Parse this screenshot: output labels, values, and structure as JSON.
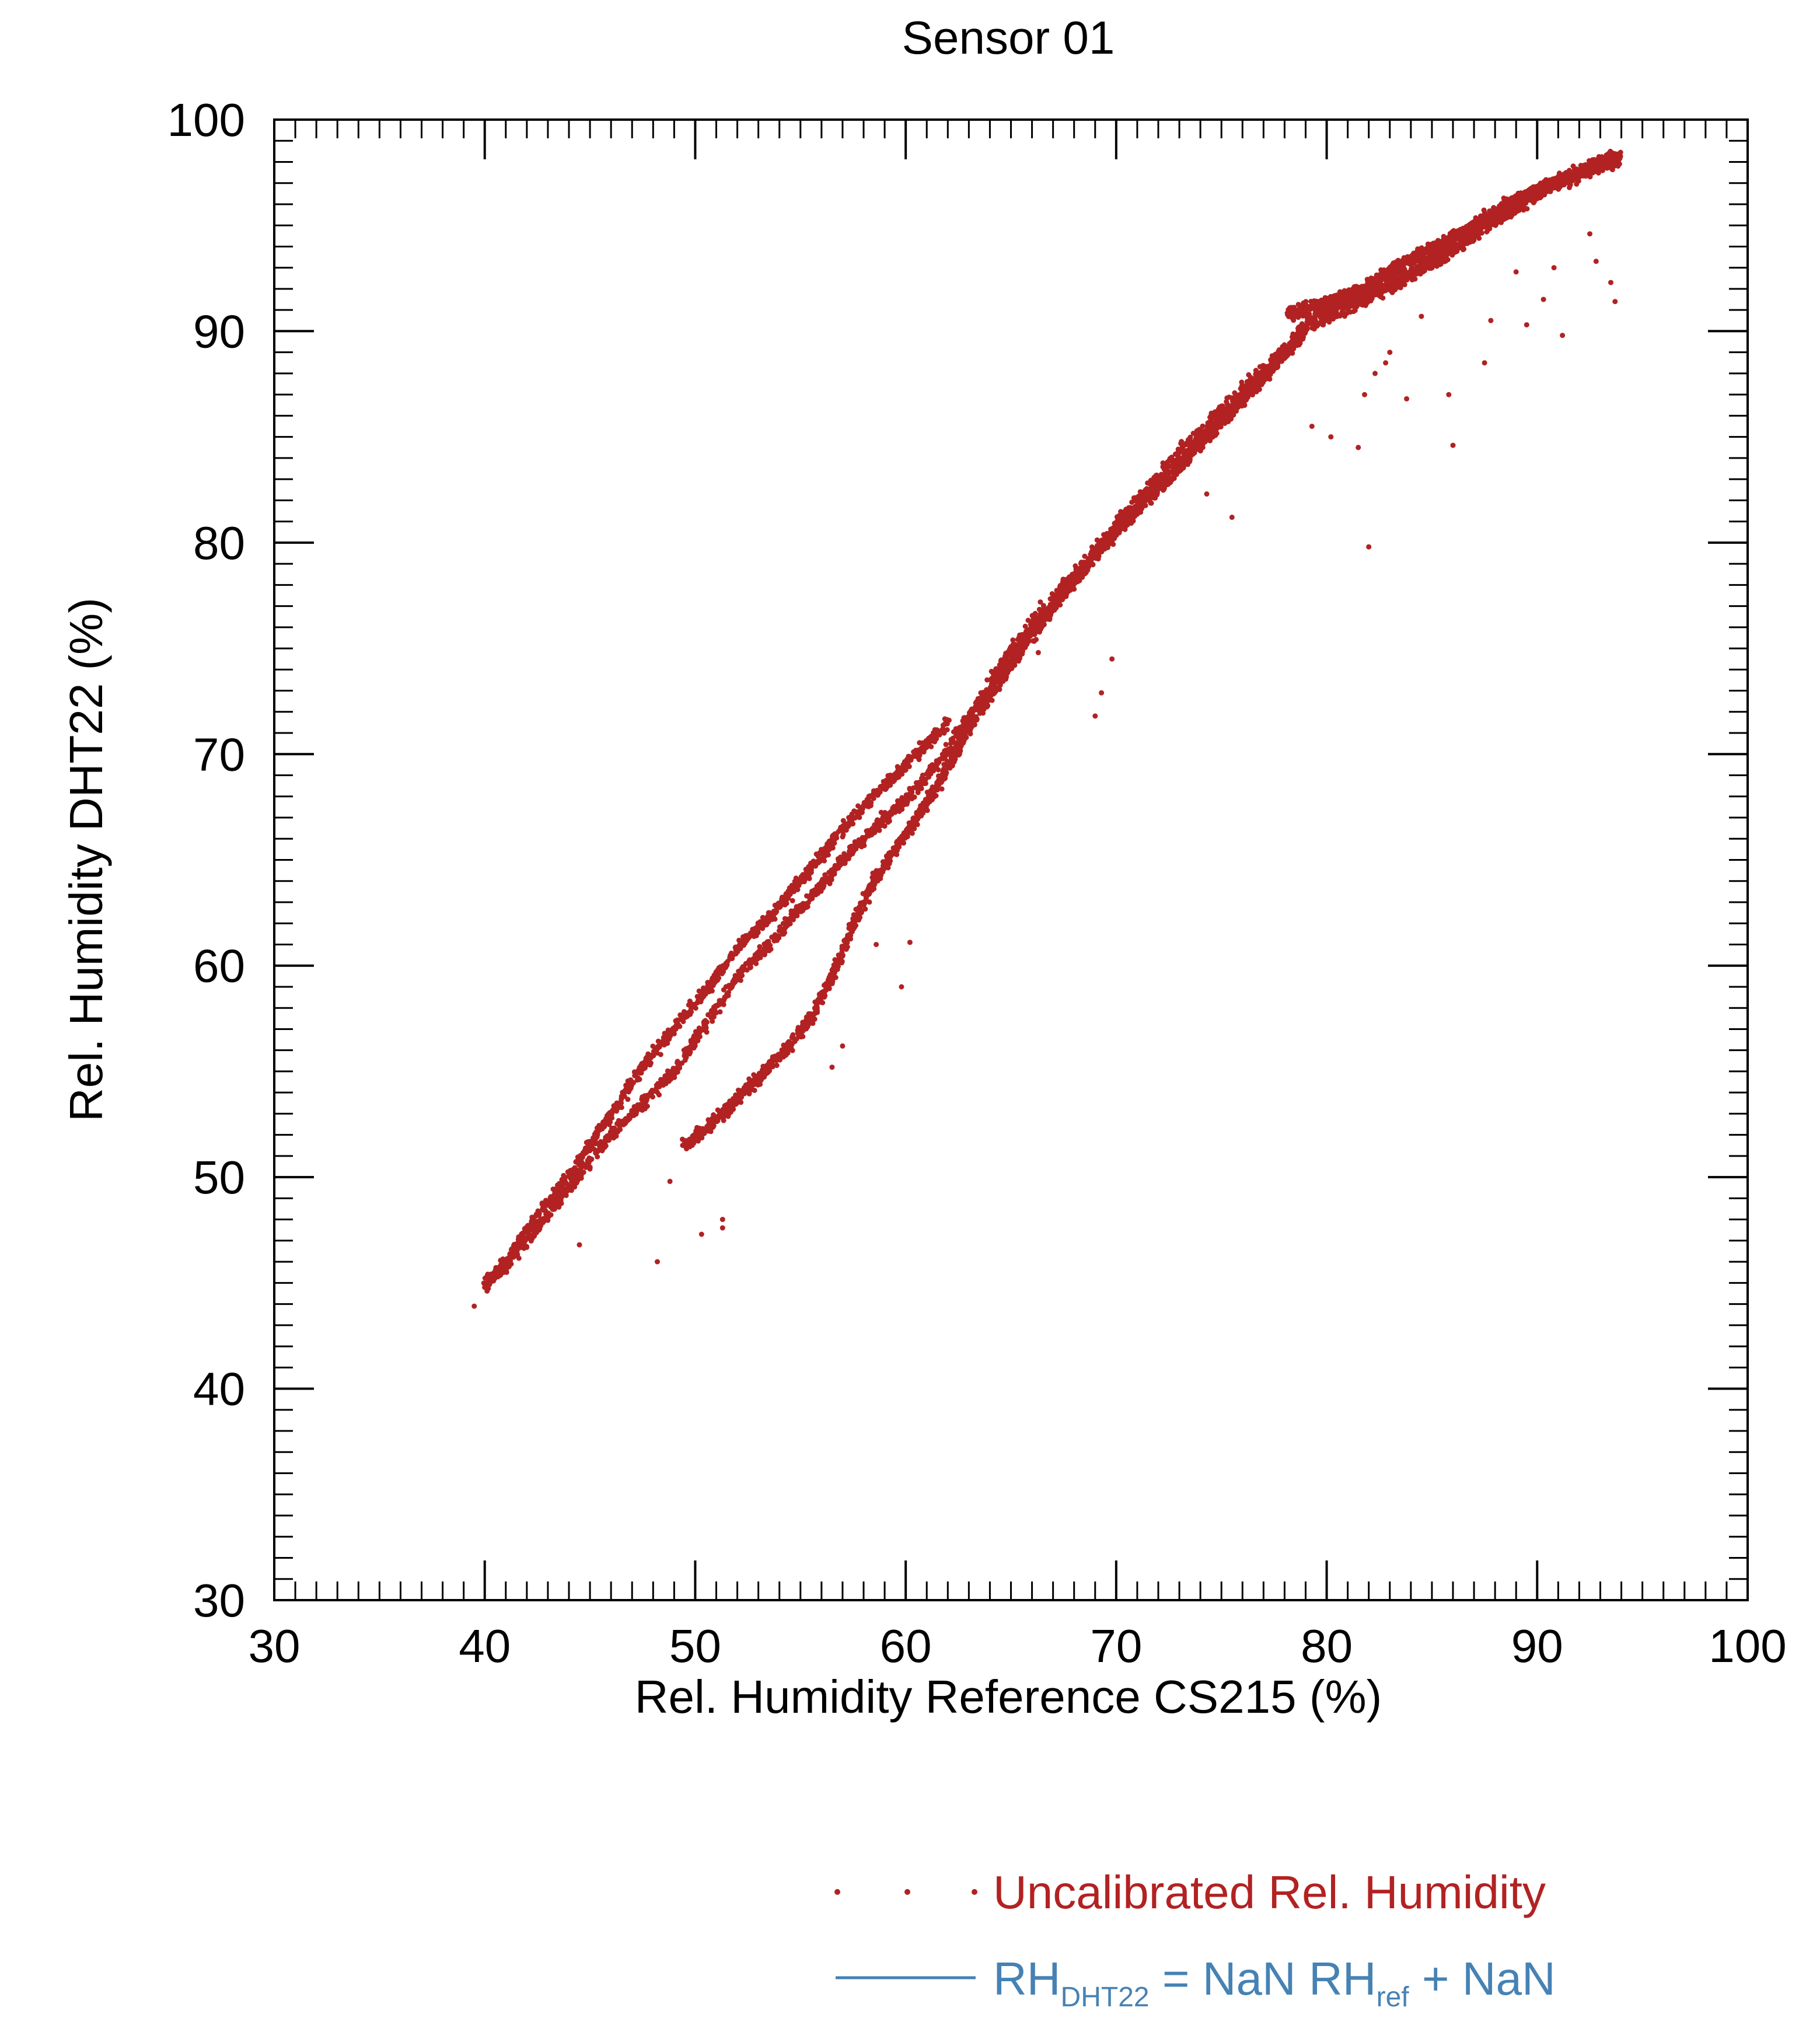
{
  "chart_data": {
    "type": "scatter",
    "title": "Sensor 01",
    "xlabel": "Rel. Humidity Reference CS215 (%)",
    "ylabel": "Rel. Humidity DHT22 (%)",
    "xlim": [
      30,
      100
    ],
    "ylim": [
      30,
      100
    ],
    "xticks": [
      "30",
      "40",
      "50",
      "60",
      "70",
      "80",
      "90",
      "100"
    ],
    "yticks": [
      "30",
      "40",
      "50",
      "60",
      "70",
      "80",
      "90",
      "100"
    ],
    "grid": false,
    "legend_position": "bottom-right",
    "colors": {
      "points": "#b22222",
      "fit_line": "#4682b4",
      "axes": "#000000"
    },
    "legend": {
      "points_label": "Uncalibrated Rel. Humidity",
      "fit_main_1": "RH",
      "fit_sub_1": "DHT22",
      "fit_main_2": " =  NaN RH",
      "fit_sub_2": "ref",
      "fit_main_3": " + NaN"
    },
    "series": [
      {
        "name": "Uncalibrated Rel. Humidity",
        "branches": [
          {
            "label": "lower-left upper trace",
            "x": [
              40.0,
              41.0,
              42.0,
              43.0,
              44.0,
              45.0,
              46.0,
              47.0,
              48.0,
              49.0,
              50.0,
              51.0,
              52.0,
              53.0,
              54.0,
              55.0,
              56.0,
              57.0,
              58.0,
              59.0,
              60.0,
              61.0,
              62.0
            ],
            "y": [
              45.0,
              46.0,
              47.5,
              48.8,
              50.0,
              51.5,
              53.0,
              54.5,
              55.8,
              57.0,
              58.2,
              59.5,
              60.8,
              61.8,
              62.8,
              64.0,
              65.2,
              66.5,
              67.5,
              68.5,
              69.5,
              70.5,
              71.5
            ]
          },
          {
            "label": "lower-left lower trace",
            "x": [
              40.0,
              41.0,
              42.0,
              43.0,
              44.0,
              45.0,
              46.0,
              47.0,
              48.0,
              49.0,
              50.0,
              51.0,
              52.0,
              53.0,
              54.0,
              55.0,
              56.0,
              57.0,
              58.0,
              59.0,
              60.0,
              61.0,
              62.0,
              63.0,
              64.0,
              65.0
            ],
            "y": [
              44.8,
              45.8,
              47.0,
              48.2,
              49.5,
              50.8,
              52.0,
              53.0,
              54.0,
              55.0,
              56.5,
              58.0,
              59.5,
              60.5,
              61.5,
              62.8,
              63.8,
              65.0,
              66.0,
              67.0,
              67.8,
              69.0,
              70.2,
              71.8,
              73.2,
              74.6
            ]
          },
          {
            "label": "middle trace",
            "x": [
              49.5,
              50.5,
              51.5,
              52.5,
              53.5,
              54.5,
              55.5,
              56.5,
              57.5,
              58.5,
              59.5,
              60.5,
              61.5,
              62.5,
              63.5,
              64.5,
              65.5,
              66.5,
              67.5,
              68.5,
              69.5,
              70.5,
              71.5,
              72.5,
              73.5,
              74.5,
              75.5,
              76.5,
              77.5,
              78.5
            ],
            "y": [
              51.5,
              52.3,
              53.2,
              54.2,
              55.2,
              56.2,
              57.5,
              59.5,
              62.0,
              64.0,
              65.5,
              67.0,
              68.5,
              70.3,
              72.0,
              73.5,
              75.0,
              76.3,
              77.6,
              78.8,
              80.0,
              81.0,
              82.0,
              83.0,
              84.2,
              85.2,
              86.2,
              87.3,
              88.3,
              89.5
            ]
          },
          {
            "label": "upper band",
            "x": [
              64.0,
              65.5,
              67.0,
              68.5,
              70.0,
              71.5,
              73.0,
              74.5,
              76.0,
              77.5,
              78.5,
              79.0,
              80.0,
              81.0,
              82.0,
              83.0,
              84.0,
              85.0,
              86.0,
              87.0,
              88.0,
              89.0,
              90.0,
              91.0,
              92.0,
              93.0,
              94.0
            ],
            "y": [
              73.5,
              75.5,
              77.3,
              79.0,
              80.8,
              82.5,
              84.2,
              85.7,
              87.2,
              88.5,
              89.5,
              90.2,
              90.8,
              91.2,
              91.7,
              92.2,
              92.7,
              93.3,
              93.9,
              94.6,
              95.3,
              95.9,
              96.5,
              97.0,
              97.5,
              97.9,
              98.3
            ]
          },
          {
            "label": "upper step",
            "x": [
              78.2,
              79.0,
              80.0,
              81.0,
              82.0,
              83.0,
              84.0,
              85.0,
              86.0,
              87.0,
              88.0,
              89.0,
              90.0,
              91.0,
              92.0,
              93.0,
              94.0
            ],
            "y": [
              90.8,
              91.0,
              91.3,
              91.7,
              92.2,
              92.8,
              93.4,
              93.9,
              94.4,
              95.0,
              95.6,
              96.2,
              96.7,
              97.1,
              97.5,
              97.9,
              98.3
            ]
          },
          {
            "label": "outliers",
            "x": [
              39.5,
              44.5,
              48.2,
              48.8,
              50.3,
              51.3,
              51.3,
              56.5,
              57.0,
              58.6,
              59.8,
              60.2,
              66.3,
              69.0,
              69.3,
              69.8,
              74.3,
              75.5,
              79.3,
              80.2,
              81.5,
              82.0,
              81.8,
              82.3,
              82.8,
              83.0,
              83.8,
              84.5,
              85.8,
              86.0,
              87.5,
              87.8,
              89.0,
              89.5,
              90.3,
              90.8,
              91.2,
              92.5,
              92.8,
              93.5,
              93.7
            ],
            "y": [
              43.9,
              46.8,
              46.0,
              49.8,
              47.3,
              47.6,
              48.0,
              55.2,
              56.2,
              61.0,
              59.0,
              61.1,
              74.8,
              71.8,
              72.9,
              74.5,
              82.3,
              81.2,
              85.5,
              85.0,
              84.5,
              79.8,
              87.0,
              88.0,
              88.5,
              89.0,
              86.8,
              90.7,
              87.0,
              84.6,
              88.5,
              90.5,
              92.8,
              90.3,
              91.5,
              93.0,
              89.8,
              94.6,
              93.3,
              92.3,
              91.4
            ]
          }
        ]
      },
      {
        "name": "RH_DHT22 = NaN RH_ref + NaN",
        "values": []
      }
    ]
  }
}
